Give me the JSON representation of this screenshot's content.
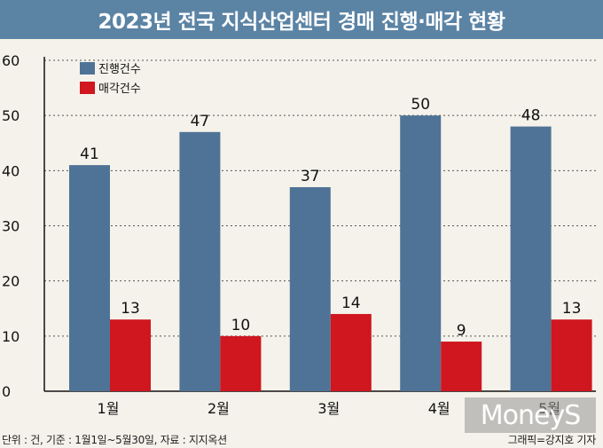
{
  "title": "2023년 전국 지식산업센터 경매 진행·매각 현황",
  "source_note": "단위 : 건, 기준 : 1월1일~5월30일, 자료 : 지지옥션",
  "credit": "그래픽=강지호 기자",
  "watermark": "MoneyS",
  "colors": {
    "title_bg": "#5b83a4",
    "background": "#f4f2ea",
    "series_progress": "#4f7396",
    "series_sold": "#d0161f"
  },
  "chart_data": {
    "type": "bar",
    "categories": [
      "1월",
      "2월",
      "3월",
      "4월",
      "5월"
    ],
    "series": [
      {
        "name": "진행건수",
        "values": [
          41,
          47,
          37,
          50,
          48
        ],
        "color": "#4f7396"
      },
      {
        "name": "매각건수",
        "values": [
          13,
          10,
          14,
          9,
          13
        ],
        "color": "#d0161f"
      }
    ],
    "ylim": [
      0,
      60
    ],
    "yticks": [
      0,
      10,
      20,
      30,
      40,
      50,
      60
    ],
    "grid": true,
    "legend_position": "top-left",
    "data_labels": true
  }
}
